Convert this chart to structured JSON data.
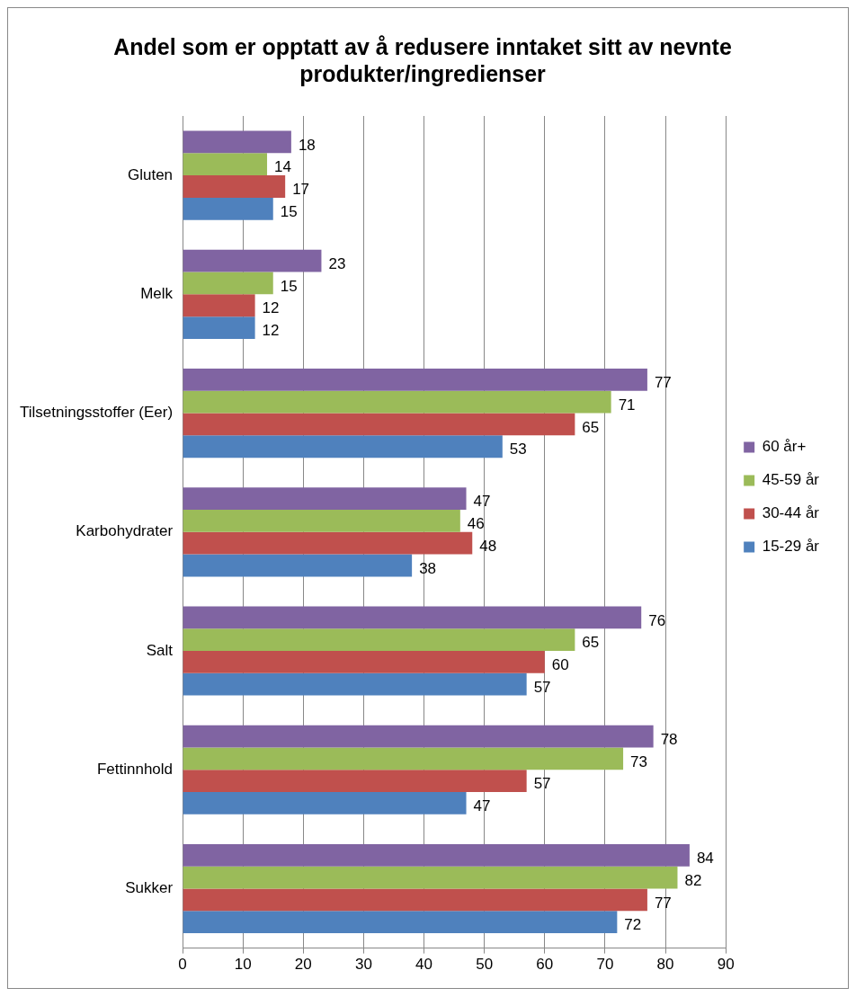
{
  "chart_data": {
    "type": "bar",
    "orientation": "horizontal",
    "title": "Andel som er opptatt av å redusere inntaket sitt av nevnte produkter/ingredienser",
    "categories": [
      "Gluten",
      "Melk",
      "Tilsetningsstoffer (Eer)",
      "Karbohydrater",
      "Salt",
      "Fettinnhold",
      "Sukker"
    ],
    "series": [
      {
        "name": "60 år+",
        "color": "#8064a2",
        "values": [
          18,
          23,
          77,
          47,
          76,
          78,
          84
        ]
      },
      {
        "name": "45-59 år",
        "color": "#9bbb59",
        "values": [
          14,
          15,
          71,
          46,
          65,
          73,
          82
        ]
      },
      {
        "name": "30-44 år",
        "color": "#c0504d",
        "values": [
          17,
          12,
          65,
          48,
          60,
          57,
          77
        ]
      },
      {
        "name": "15-29 år",
        "color": "#4f81bd",
        "values": [
          15,
          12,
          53,
          38,
          57,
          47,
          72
        ]
      }
    ],
    "xlim": [
      0,
      90
    ],
    "xticks": [
      0,
      10,
      20,
      30,
      40,
      50,
      60,
      70,
      80,
      90
    ],
    "grid": "x",
    "legend": "right",
    "data_labels": true
  }
}
